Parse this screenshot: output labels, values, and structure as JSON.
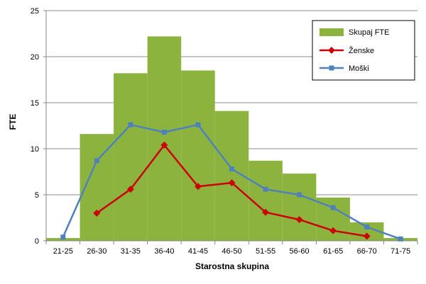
{
  "chart_data": {
    "type": "bar",
    "categories": [
      "21-25",
      "26-30",
      "31-35",
      "36-40",
      "41-45",
      "46-50",
      "51-55",
      "56-60",
      "61-65",
      "66-70",
      "71-75"
    ],
    "xlabel": "Starostna skupina",
    "ylabel": "FTE",
    "ylim": [
      0,
      25
    ],
    "yticks": [
      0,
      5,
      10,
      15,
      20,
      25
    ],
    "grid": true,
    "legend_position": "top-right",
    "series": [
      {
        "name": "Skupaj FTE",
        "kind": "bar",
        "color": "#8DB33F",
        "values": [
          0.3,
          11.6,
          18.2,
          22.2,
          18.5,
          14.1,
          8.7,
          7.3,
          4.7,
          2.0,
          0.3
        ]
      },
      {
        "name": "Ženske",
        "kind": "line",
        "marker": "diamond",
        "color": "#CC0000",
        "values": [
          null,
          3.0,
          5.6,
          10.4,
          5.9,
          6.3,
          3.1,
          2.3,
          1.1,
          0.5,
          null
        ]
      },
      {
        "name": "Moški",
        "kind": "line",
        "marker": "square",
        "color": "#4F81BD",
        "values": [
          0.4,
          8.7,
          12.6,
          11.8,
          12.6,
          7.8,
          5.6,
          5.0,
          3.6,
          1.5,
          0.2
        ]
      }
    ]
  }
}
